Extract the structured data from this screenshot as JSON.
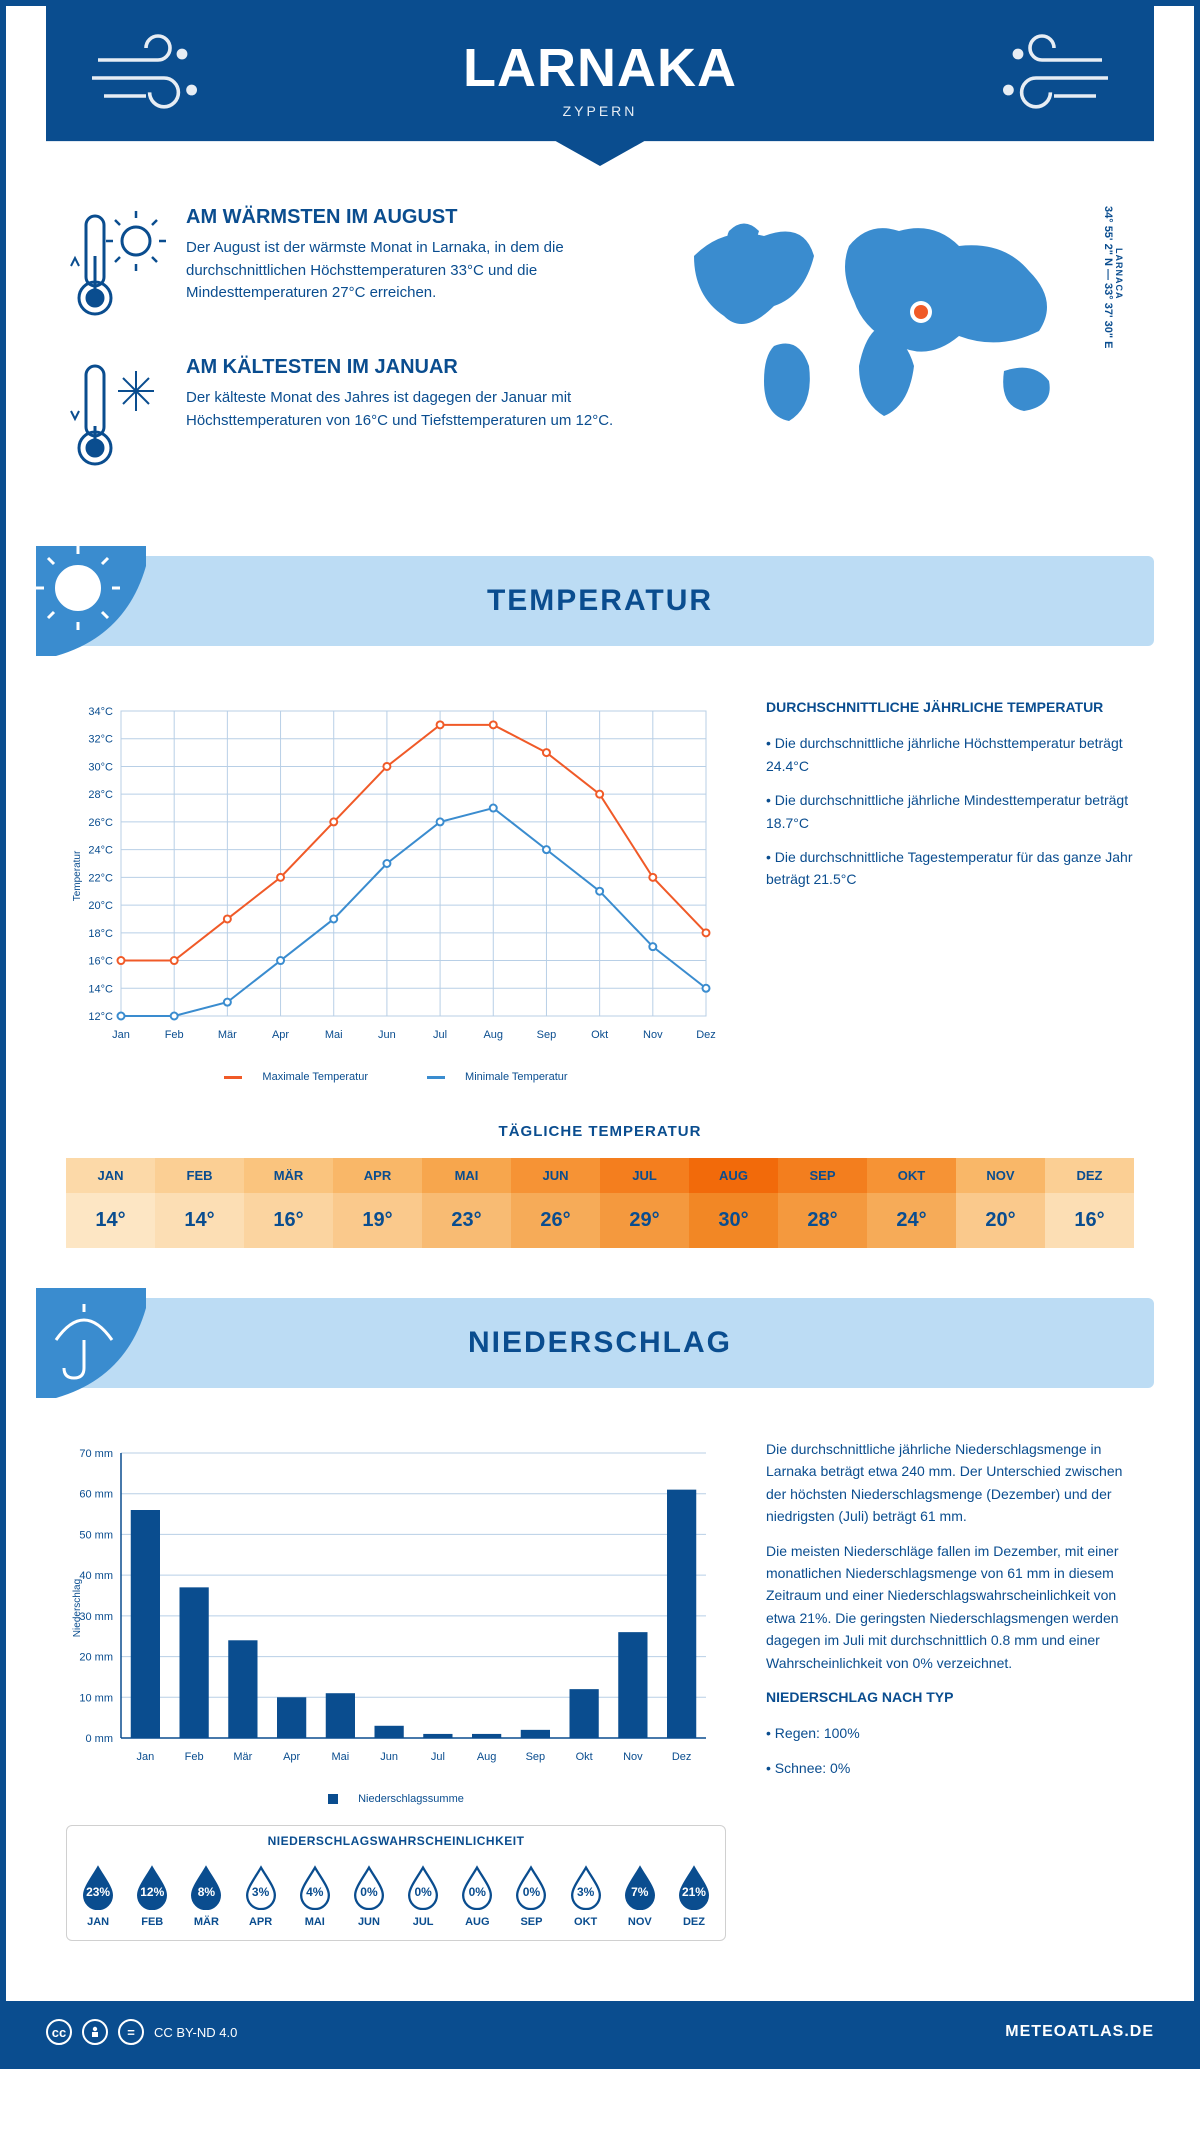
{
  "header": {
    "city": "LARNAKA",
    "country": "ZYPERN"
  },
  "coords": {
    "location": "LARNACA",
    "text": "34° 55' 2\" N — 33° 37' 30\" E"
  },
  "intro": {
    "warm": {
      "title": "AM WÄRMSTEN IM AUGUST",
      "text": "Der August ist der wärmste Monat in Larnaka, in dem die durchschnittlichen Höchsttemperaturen 33°C und die Mindesttemperaturen 27°C erreichen."
    },
    "cold": {
      "title": "AM KÄLTESTEN IM JANUAR",
      "text": "Der kälteste Monat des Jahres ist dagegen der Januar mit Höchsttemperaturen von 16°C und Tiefsttemperaturen um 12°C."
    }
  },
  "sections": {
    "temperature": "TEMPERATUR",
    "precipitation": "NIEDERSCHLAG"
  },
  "temp_chart": {
    "type": "line",
    "months": [
      "Jan",
      "Feb",
      "Mär",
      "Apr",
      "Mai",
      "Jun",
      "Jul",
      "Aug",
      "Sep",
      "Okt",
      "Nov",
      "Dez"
    ],
    "series": [
      {
        "name": "Maximale Temperatur",
        "color": "#f05a28",
        "values": [
          16,
          16,
          19,
          22,
          26,
          30,
          33,
          33,
          31,
          28,
          22,
          18
        ]
      },
      {
        "name": "Minimale Temperatur",
        "color": "#3a8ccf",
        "values": [
          12,
          12,
          13,
          16,
          19,
          23,
          26,
          27,
          24,
          21,
          17,
          14
        ]
      }
    ],
    "ylabel": "Temperatur",
    "ylim": [
      12,
      34
    ],
    "ytick_step": 2,
    "grid_color": "#b8cfe6",
    "bg": "#ffffff",
    "marker": "circle",
    "line_width": 2
  },
  "temp_side": {
    "title": "DURCHSCHNITTLICHE JÄHRLICHE TEMPERATUR",
    "b1": "Die durchschnittliche jährliche Höchsttemperatur beträgt 24.4°C",
    "b2": "Die durchschnittliche jährliche Mindesttemperatur beträgt 18.7°C",
    "b3": "Die durchschnittliche Tagestemperatur für das ganze Jahr beträgt 21.5°C"
  },
  "daily": {
    "title": "TÄGLICHE TEMPERATUR",
    "months": [
      "JAN",
      "FEB",
      "MÄR",
      "APR",
      "MAI",
      "JUN",
      "JUL",
      "AUG",
      "SEP",
      "OKT",
      "NOV",
      "DEZ"
    ],
    "values": [
      "14°",
      "14°",
      "16°",
      "19°",
      "23°",
      "26°",
      "29°",
      "30°",
      "28°",
      "24°",
      "20°",
      "16°"
    ],
    "header_colors": [
      "#fcd9a8",
      "#fbcf94",
      "#fac47e",
      "#f9b768",
      "#f7a64d",
      "#f69335",
      "#f47e1e",
      "#f26a0a",
      "#f37e1e",
      "#f69335",
      "#f9b768",
      "#fbcf94"
    ],
    "body_colors": [
      "#fde6c4",
      "#fcdeb4",
      "#fbd4a0",
      "#fac98c",
      "#f8bb73",
      "#f6ab58",
      "#f4993e",
      "#f28725",
      "#f4993e",
      "#f6ab58",
      "#fac98c",
      "#fcdeb4"
    ]
  },
  "precip_chart": {
    "type": "bar",
    "months": [
      "Jan",
      "Feb",
      "Mär",
      "Apr",
      "Mai",
      "Jun",
      "Jul",
      "Aug",
      "Sep",
      "Okt",
      "Nov",
      "Dez"
    ],
    "values": [
      56,
      37,
      24,
      10,
      11,
      3,
      1,
      1,
      2,
      12,
      26,
      61
    ],
    "bar_color": "#0a4d8f",
    "ylabel": "Niederschlag",
    "ylim": [
      0,
      70
    ],
    "ytick_step": 10,
    "grid_color": "#b8cfe6",
    "legend": "Niederschlagssumme"
  },
  "precip_side": {
    "p1": "Die durchschnittliche jährliche Niederschlagsmenge in Larnaka beträgt etwa 240 mm. Der Unterschied zwischen der höchsten Niederschlagsmenge (Dezember) und der niedrigsten (Juli) beträgt 61 mm.",
    "p2": "Die meisten Niederschläge fallen im Dezember, mit einer monatlichen Niederschlagsmenge von 61 mm in diesem Zeitraum und einer Niederschlagswahrscheinlichkeit von etwa 21%. Die geringsten Niederschlagsmengen werden dagegen im Juli mit durchschnittlich 0.8 mm und einer Wahrscheinlichkeit von 0% verzeichnet.",
    "type_title": "NIEDERSCHLAG NACH TYP",
    "rain": "Regen: 100%",
    "snow": "Schnee: 0%"
  },
  "precip_prob": {
    "title": "NIEDERSCHLAGSWAHRSCHEINLICHKEIT",
    "months": [
      "JAN",
      "FEB",
      "MÄR",
      "APR",
      "MAI",
      "JUN",
      "JUL",
      "AUG",
      "SEP",
      "OKT",
      "NOV",
      "DEZ"
    ],
    "values": [
      "23%",
      "12%",
      "8%",
      "3%",
      "4%",
      "0%",
      "0%",
      "0%",
      "0%",
      "3%",
      "7%",
      "21%"
    ],
    "filled": [
      true,
      true,
      true,
      false,
      false,
      false,
      false,
      false,
      false,
      false,
      true,
      true
    ]
  },
  "footer": {
    "license": "CC BY-ND 4.0",
    "brand": "METEOATLAS.DE"
  }
}
